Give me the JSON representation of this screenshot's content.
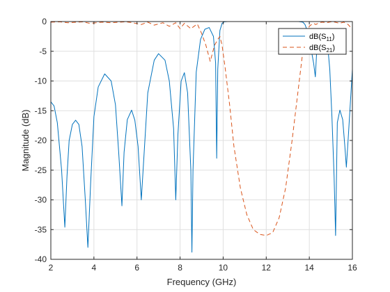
{
  "chart_data": {
    "type": "line",
    "title": "",
    "xlabel": "Frequency (GHz)",
    "ylabel": "Magnitude (dB)",
    "xlim": [
      2,
      16
    ],
    "ylim": [
      -40,
      0
    ],
    "xticks": [
      2,
      4,
      6,
      8,
      10,
      12,
      14,
      16
    ],
    "yticks": [
      0,
      -5,
      -10,
      -15,
      -20,
      -25,
      -30,
      -35,
      -40
    ],
    "grid": true,
    "legend_position": "top-right",
    "series": [
      {
        "name": "dB(S11)",
        "label_main": "dB(S",
        "label_sub": "11",
        "label_end": ")",
        "color": "#0072BD",
        "dash": "solid",
        "x": [
          2.0,
          2.15,
          2.3,
          2.5,
          2.65,
          2.75,
          2.85,
          3.0,
          3.15,
          3.3,
          3.45,
          3.6,
          3.72,
          3.85,
          4.0,
          4.2,
          4.5,
          4.8,
          5.0,
          5.15,
          5.3,
          5.4,
          5.55,
          5.75,
          5.9,
          6.05,
          6.2,
          6.35,
          6.5,
          6.8,
          7.0,
          7.3,
          7.5,
          7.7,
          7.8,
          7.9,
          8.05,
          8.2,
          8.35,
          8.5,
          8.55,
          8.6,
          8.75,
          8.95,
          9.15,
          9.35,
          9.55,
          9.65,
          9.7,
          9.75,
          9.85,
          9.95,
          10.05,
          10.2,
          10.5,
          11,
          11.5,
          12,
          12.5,
          13,
          13.5,
          13.7,
          13.8,
          13.9,
          14.0,
          14.1,
          14.2,
          14.28,
          14.35,
          14.45,
          14.6,
          14.75,
          14.85,
          14.95,
          15.05,
          15.15,
          15.22,
          15.3,
          15.42,
          15.55,
          15.65,
          15.72,
          15.8,
          15.9,
          16.0
        ],
        "y": [
          -13.5,
          -14.2,
          -17,
          -25,
          -34.6,
          -26,
          -20,
          -17.3,
          -16.6,
          -17.3,
          -21,
          -30,
          -38,
          -27,
          -16,
          -11,
          -8.8,
          -10,
          -14,
          -22,
          -31,
          -22,
          -16.5,
          -14.9,
          -16.6,
          -21,
          -30,
          -21,
          -12,
          -6.5,
          -5.4,
          -6.5,
          -10,
          -18,
          -30,
          -19,
          -10,
          -8.6,
          -12,
          -25,
          -38.8,
          -25,
          -8.5,
          -3,
          -1.3,
          -1,
          -2.5,
          -7,
          -23,
          -8,
          -1.5,
          -0.3,
          -0.05,
          0,
          0,
          0,
          0,
          0,
          0,
          0,
          0,
          -0.1,
          -0.5,
          -1.5,
          -3.5,
          -5,
          -7,
          -9.3,
          -4.5,
          -2.3,
          -1.5,
          -2.5,
          -4,
          -8,
          -16,
          -26,
          -36,
          -17,
          -14.9,
          -16.5,
          -21,
          -24.5,
          -20,
          -14,
          -8
        ]
      },
      {
        "name": "dB(S21)",
        "label_main": "dB(S",
        "label_sub": "21",
        "label_end": ")",
        "color": "#D95319",
        "dash": "dashed",
        "x": [
          2.0,
          2.4,
          2.8,
          3.2,
          3.5,
          3.8,
          4.1,
          4.4,
          4.8,
          5.2,
          5.5,
          5.8,
          6.2,
          6.5,
          6.8,
          7.2,
          7.5,
          7.8,
          8.0,
          8.2,
          8.5,
          8.8,
          9.0,
          9.2,
          9.4,
          9.6,
          9.75,
          9.85,
          9.95,
          10.1,
          10.3,
          10.5,
          10.8,
          11.1,
          11.4,
          11.7,
          12.0,
          12.3,
          12.6,
          12.9,
          13.2,
          13.5,
          13.7,
          13.85,
          14.0,
          14.1,
          14.2,
          14.3,
          14.45,
          14.6,
          14.8,
          15.0,
          15.2,
          15.4,
          15.6,
          15.8,
          16.0
        ],
        "y": [
          -0.1,
          -0.05,
          -0.2,
          -0.1,
          -0.05,
          -0.3,
          -0.2,
          -0.1,
          -0.2,
          -0.1,
          -0.05,
          -0.2,
          -0.5,
          -0.1,
          -0.6,
          -0.2,
          -0.8,
          -0.2,
          -1.2,
          -0.3,
          -1.2,
          -0.4,
          -2,
          -4,
          -6.7,
          -4,
          -3,
          -2.5,
          -4,
          -8,
          -14,
          -21,
          -28,
          -32.5,
          -35,
          -35.8,
          -36,
          -35.5,
          -33,
          -28,
          -20,
          -11,
          -5,
          -2,
          -0.8,
          -0.5,
          -0.3,
          -0.5,
          -0.2,
          -0.1,
          -0.2,
          -0.05,
          -0.1,
          -0.3,
          -0.1,
          -0.5,
          -1.3
        ]
      }
    ]
  }
}
